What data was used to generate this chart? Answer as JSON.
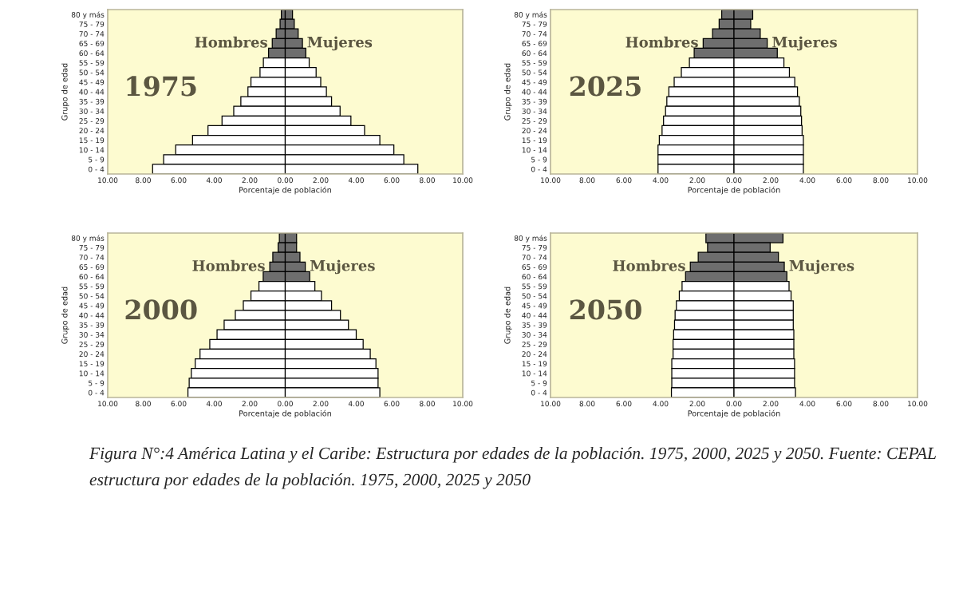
{
  "chart_data": [
    {
      "type": "bar",
      "orientation": "horizontal",
      "stacked": true,
      "title": "1975",
      "xlabel": "Porcentaje de población",
      "ylabel": "Grupo de edad",
      "categories": [
        "80 y más",
        "75 - 79",
        "70 - 74",
        "65 - 69",
        "60 - 64",
        "55 - 59",
        "50 - 54",
        "45 - 49",
        "40 - 44",
        "35 - 39",
        "30 - 34",
        "25 - 29",
        "20 - 24",
        "15 - 19",
        "10 - 14",
        "5 - 9",
        "0 - 4"
      ],
      "series": [
        {
          "name": "Hombres",
          "colors": [
            "#6e6e6e",
            "#6e6e6e",
            "#6e6e6e",
            "#6e6e6e",
            "#6e6e6e",
            "#ffffff",
            "#ffffff",
            "#ffffff",
            "#ffffff",
            "#ffffff",
            "#ffffff",
            "#ffffff",
            "#ffffff",
            "#ffffff",
            "#ffffff",
            "#ffffff",
            "#ffffff"
          ],
          "values": [
            -0.22,
            -0.29,
            -0.51,
            -0.73,
            -0.94,
            -1.23,
            -1.42,
            -1.93,
            -2.1,
            -2.5,
            -2.9,
            -3.56,
            -4.35,
            -5.22,
            -6.17,
            -6.85,
            -7.47
          ]
        },
        {
          "name": "Mujeres",
          "colors": [
            "#6e6e6e",
            "#6e6e6e",
            "#6e6e6e",
            "#6e6e6e",
            "#6e6e6e",
            "#ffffff",
            "#ffffff",
            "#ffffff",
            "#ffffff",
            "#ffffff",
            "#ffffff",
            "#ffffff",
            "#ffffff",
            "#ffffff",
            "#ffffff",
            "#ffffff",
            "#ffffff"
          ],
          "values": [
            0.41,
            0.51,
            0.73,
            0.97,
            1.16,
            1.35,
            1.74,
            2.0,
            2.32,
            2.61,
            3.09,
            3.7,
            4.47,
            5.33,
            6.12,
            6.68,
            7.47
          ]
        }
      ],
      "xlim": [
        -10,
        10
      ],
      "xticks": [
        {
          "value": -10,
          "label": "10.00"
        },
        {
          "value": -8,
          "label": "8.00"
        },
        {
          "value": -6,
          "label": "6.00"
        },
        {
          "value": -4,
          "label": "4.00"
        },
        {
          "value": -2,
          "label": "2.00"
        },
        {
          "value": 0,
          "label": "0.00"
        },
        {
          "value": 2,
          "label": "2.00"
        },
        {
          "value": 4,
          "label": "4.00"
        },
        {
          "value": 6,
          "label": "6.00"
        },
        {
          "value": 8,
          "label": "8.00"
        },
        {
          "value": 10,
          "label": "10.00"
        }
      ],
      "grid": false
    },
    {
      "type": "bar",
      "orientation": "horizontal",
      "stacked": true,
      "title": "2025",
      "xlabel": "Porcentaje de población",
      "ylabel": "Grupo de edad",
      "categories": [
        "80 y más",
        "75 - 79",
        "70 - 74",
        "65 - 69",
        "60 - 64",
        "55 - 59",
        "50 - 54",
        "45 - 49",
        "40 - 44",
        "35 - 39",
        "30 - 34",
        "25 - 29",
        "20 - 24",
        "15 - 19",
        "10 - 14",
        "5 - 9",
        "0 - 4"
      ],
      "series": [
        {
          "name": "Hombres",
          "colors": [
            "#6e6e6e",
            "#6e6e6e",
            "#6e6e6e",
            "#6e6e6e",
            "#6e6e6e",
            "#ffffff",
            "#ffffff",
            "#ffffff",
            "#ffffff",
            "#ffffff",
            "#ffffff",
            "#ffffff",
            "#ffffff",
            "#ffffff",
            "#ffffff",
            "#ffffff",
            "#ffffff"
          ],
          "values": [
            -0.67,
            -0.81,
            -1.17,
            -1.68,
            -2.17,
            -2.43,
            -2.87,
            -3.26,
            -3.55,
            -3.66,
            -3.73,
            -3.84,
            -3.92,
            -4.07,
            -4.14,
            -4.14,
            -4.14
          ]
        },
        {
          "name": "Mujeres",
          "colors": [
            "#6e6e6e",
            "#6e6e6e",
            "#6e6e6e",
            "#6e6e6e",
            "#6e6e6e",
            "#ffffff",
            "#ffffff",
            "#ffffff",
            "#ffffff",
            "#ffffff",
            "#ffffff",
            "#ffffff",
            "#ffffff",
            "#ffffff",
            "#ffffff",
            "#ffffff",
            "#ffffff"
          ],
          "values": [
            1.02,
            0.91,
            1.43,
            1.81,
            2.36,
            2.72,
            3.02,
            3.31,
            3.46,
            3.56,
            3.64,
            3.68,
            3.71,
            3.78,
            3.78,
            3.78,
            3.78
          ]
        }
      ],
      "xlim": [
        -10,
        10
      ],
      "xticks": [
        {
          "value": -10,
          "label": "10.00"
        },
        {
          "value": -8,
          "label": "8.00"
        },
        {
          "value": -6,
          "label": "6.00"
        },
        {
          "value": -4,
          "label": "4.00"
        },
        {
          "value": -2,
          "label": "2.00"
        },
        {
          "value": 0,
          "label": "0.00"
        },
        {
          "value": 2,
          "label": "2.00"
        },
        {
          "value": 4,
          "label": "4.00"
        },
        {
          "value": 6,
          "label": "6.00"
        },
        {
          "value": 8,
          "label": "8.00"
        },
        {
          "value": 10,
          "label": "10.00"
        }
      ],
      "grid": false
    },
    {
      "type": "bar",
      "orientation": "horizontal",
      "stacked": true,
      "title": "2000",
      "xlabel": "Porcentaje de población",
      "ylabel": "Grupo de edad",
      "categories": [
        "80 y más",
        "75 - 79",
        "70 - 74",
        "65 - 69",
        "60 - 64",
        "55 - 59",
        "50 - 54",
        "45 - 49",
        "40 - 44",
        "35 - 39",
        "30 - 34",
        "25 - 29",
        "20 - 24",
        "15 - 19",
        "10 - 14",
        "5 - 9",
        "0 - 4"
      ],
      "series": [
        {
          "name": "Hombres",
          "colors": [
            "#6e6e6e",
            "#6e6e6e",
            "#6e6e6e",
            "#6e6e6e",
            "#6e6e6e",
            "#ffffff",
            "#ffffff",
            "#ffffff",
            "#ffffff",
            "#ffffff",
            "#ffffff",
            "#ffffff",
            "#ffffff",
            "#ffffff",
            "#ffffff",
            "#ffffff",
            "#ffffff"
          ],
          "values": [
            -0.33,
            -0.4,
            -0.7,
            -0.87,
            -1.24,
            -1.48,
            -1.93,
            -2.36,
            -2.81,
            -3.44,
            -3.84,
            -4.25,
            -4.8,
            -5.07,
            -5.29,
            -5.41,
            -5.48
          ]
        },
        {
          "name": "Mujeres",
          "colors": [
            "#6e6e6e",
            "#6e6e6e",
            "#6e6e6e",
            "#6e6e6e",
            "#6e6e6e",
            "#ffffff",
            "#ffffff",
            "#ffffff",
            "#ffffff",
            "#ffffff",
            "#ffffff",
            "#ffffff",
            "#ffffff",
            "#ffffff",
            "#ffffff",
            "#ffffff",
            "#ffffff"
          ],
          "values": [
            0.64,
            0.64,
            0.83,
            1.13,
            1.38,
            1.67,
            2.04,
            2.61,
            3.11,
            3.56,
            4.0,
            4.39,
            4.79,
            5.11,
            5.23,
            5.23,
            5.33
          ]
        }
      ],
      "xlim": [
        -10,
        10
      ],
      "xticks": [
        {
          "value": -10,
          "label": "10.00"
        },
        {
          "value": -8,
          "label": "8.00"
        },
        {
          "value": -6,
          "label": "6.00"
        },
        {
          "value": -4,
          "label": "4.00"
        },
        {
          "value": -2,
          "label": "2.00"
        },
        {
          "value": 0,
          "label": "0.00"
        },
        {
          "value": 2,
          "label": "2.00"
        },
        {
          "value": 4,
          "label": "4.00"
        },
        {
          "value": 6,
          "label": "6.00"
        },
        {
          "value": 8,
          "label": "8.00"
        },
        {
          "value": 10,
          "label": "10.00"
        }
      ],
      "grid": false
    },
    {
      "type": "bar",
      "orientation": "horizontal",
      "stacked": true,
      "title": "2050",
      "xlabel": "Porcentaje de población",
      "ylabel": "Grupo de edad",
      "categories": [
        "80 y más",
        "75 - 79",
        "70 - 74",
        "65 - 69",
        "60 - 64",
        "55 - 59",
        "50 - 54",
        "45 - 49",
        "40 - 44",
        "35 - 39",
        "30 - 34",
        "25 - 29",
        "20 - 24",
        "15 - 19",
        "10 - 14",
        "5 - 9",
        "0 - 4"
      ],
      "series": [
        {
          "name": "Hombres",
          "colors": [
            "#6e6e6e",
            "#6e6e6e",
            "#6e6e6e",
            "#6e6e6e",
            "#6e6e6e",
            "#ffffff",
            "#ffffff",
            "#ffffff",
            "#ffffff",
            "#ffffff",
            "#ffffff",
            "#ffffff",
            "#ffffff",
            "#ffffff",
            "#ffffff",
            "#ffffff",
            "#ffffff"
          ],
          "values": [
            -1.53,
            -1.44,
            -1.95,
            -2.38,
            -2.64,
            -2.83,
            -2.98,
            -3.14,
            -3.21,
            -3.24,
            -3.29,
            -3.32,
            -3.32,
            -3.39,
            -3.39,
            -3.39,
            -3.41
          ]
        },
        {
          "name": "Mujeres",
          "colors": [
            "#6e6e6e",
            "#6e6e6e",
            "#6e6e6e",
            "#6e6e6e",
            "#6e6e6e",
            "#ffffff",
            "#ffffff",
            "#ffffff",
            "#ffffff",
            "#ffffff",
            "#ffffff",
            "#ffffff",
            "#ffffff",
            "#ffffff",
            "#ffffff",
            "#ffffff",
            "#ffffff"
          ],
          "values": [
            2.67,
            1.97,
            2.42,
            2.74,
            2.88,
            3.0,
            3.11,
            3.23,
            3.23,
            3.23,
            3.26,
            3.26,
            3.26,
            3.3,
            3.3,
            3.3,
            3.35
          ]
        }
      ],
      "xlim": [
        -10,
        10
      ],
      "xticks": [
        {
          "value": -10,
          "label": "10.00"
        },
        {
          "value": -8,
          "label": "8.00"
        },
        {
          "value": -6,
          "label": "6.00"
        },
        {
          "value": -4,
          "label": "4.00"
        },
        {
          "value": -2,
          "label": "2.00"
        },
        {
          "value": 0,
          "label": "0.00"
        },
        {
          "value": 2,
          "label": "2.00"
        },
        {
          "value": 4,
          "label": "4.00"
        },
        {
          "value": 6,
          "label": "6.00"
        },
        {
          "value": 8,
          "label": "8.00"
        },
        {
          "value": 10,
          "label": "10.00"
        }
      ],
      "grid": false,
      "annotations": [
        "Figura N°:4 América Latina y el Caribe: Estructura por edades de la población. 1975, 2000, 2025 y 2050. Fuente: CEPAL estructura por edades de la población. 1975, 2000, 2025 y 2050"
      ]
    }
  ]
}
